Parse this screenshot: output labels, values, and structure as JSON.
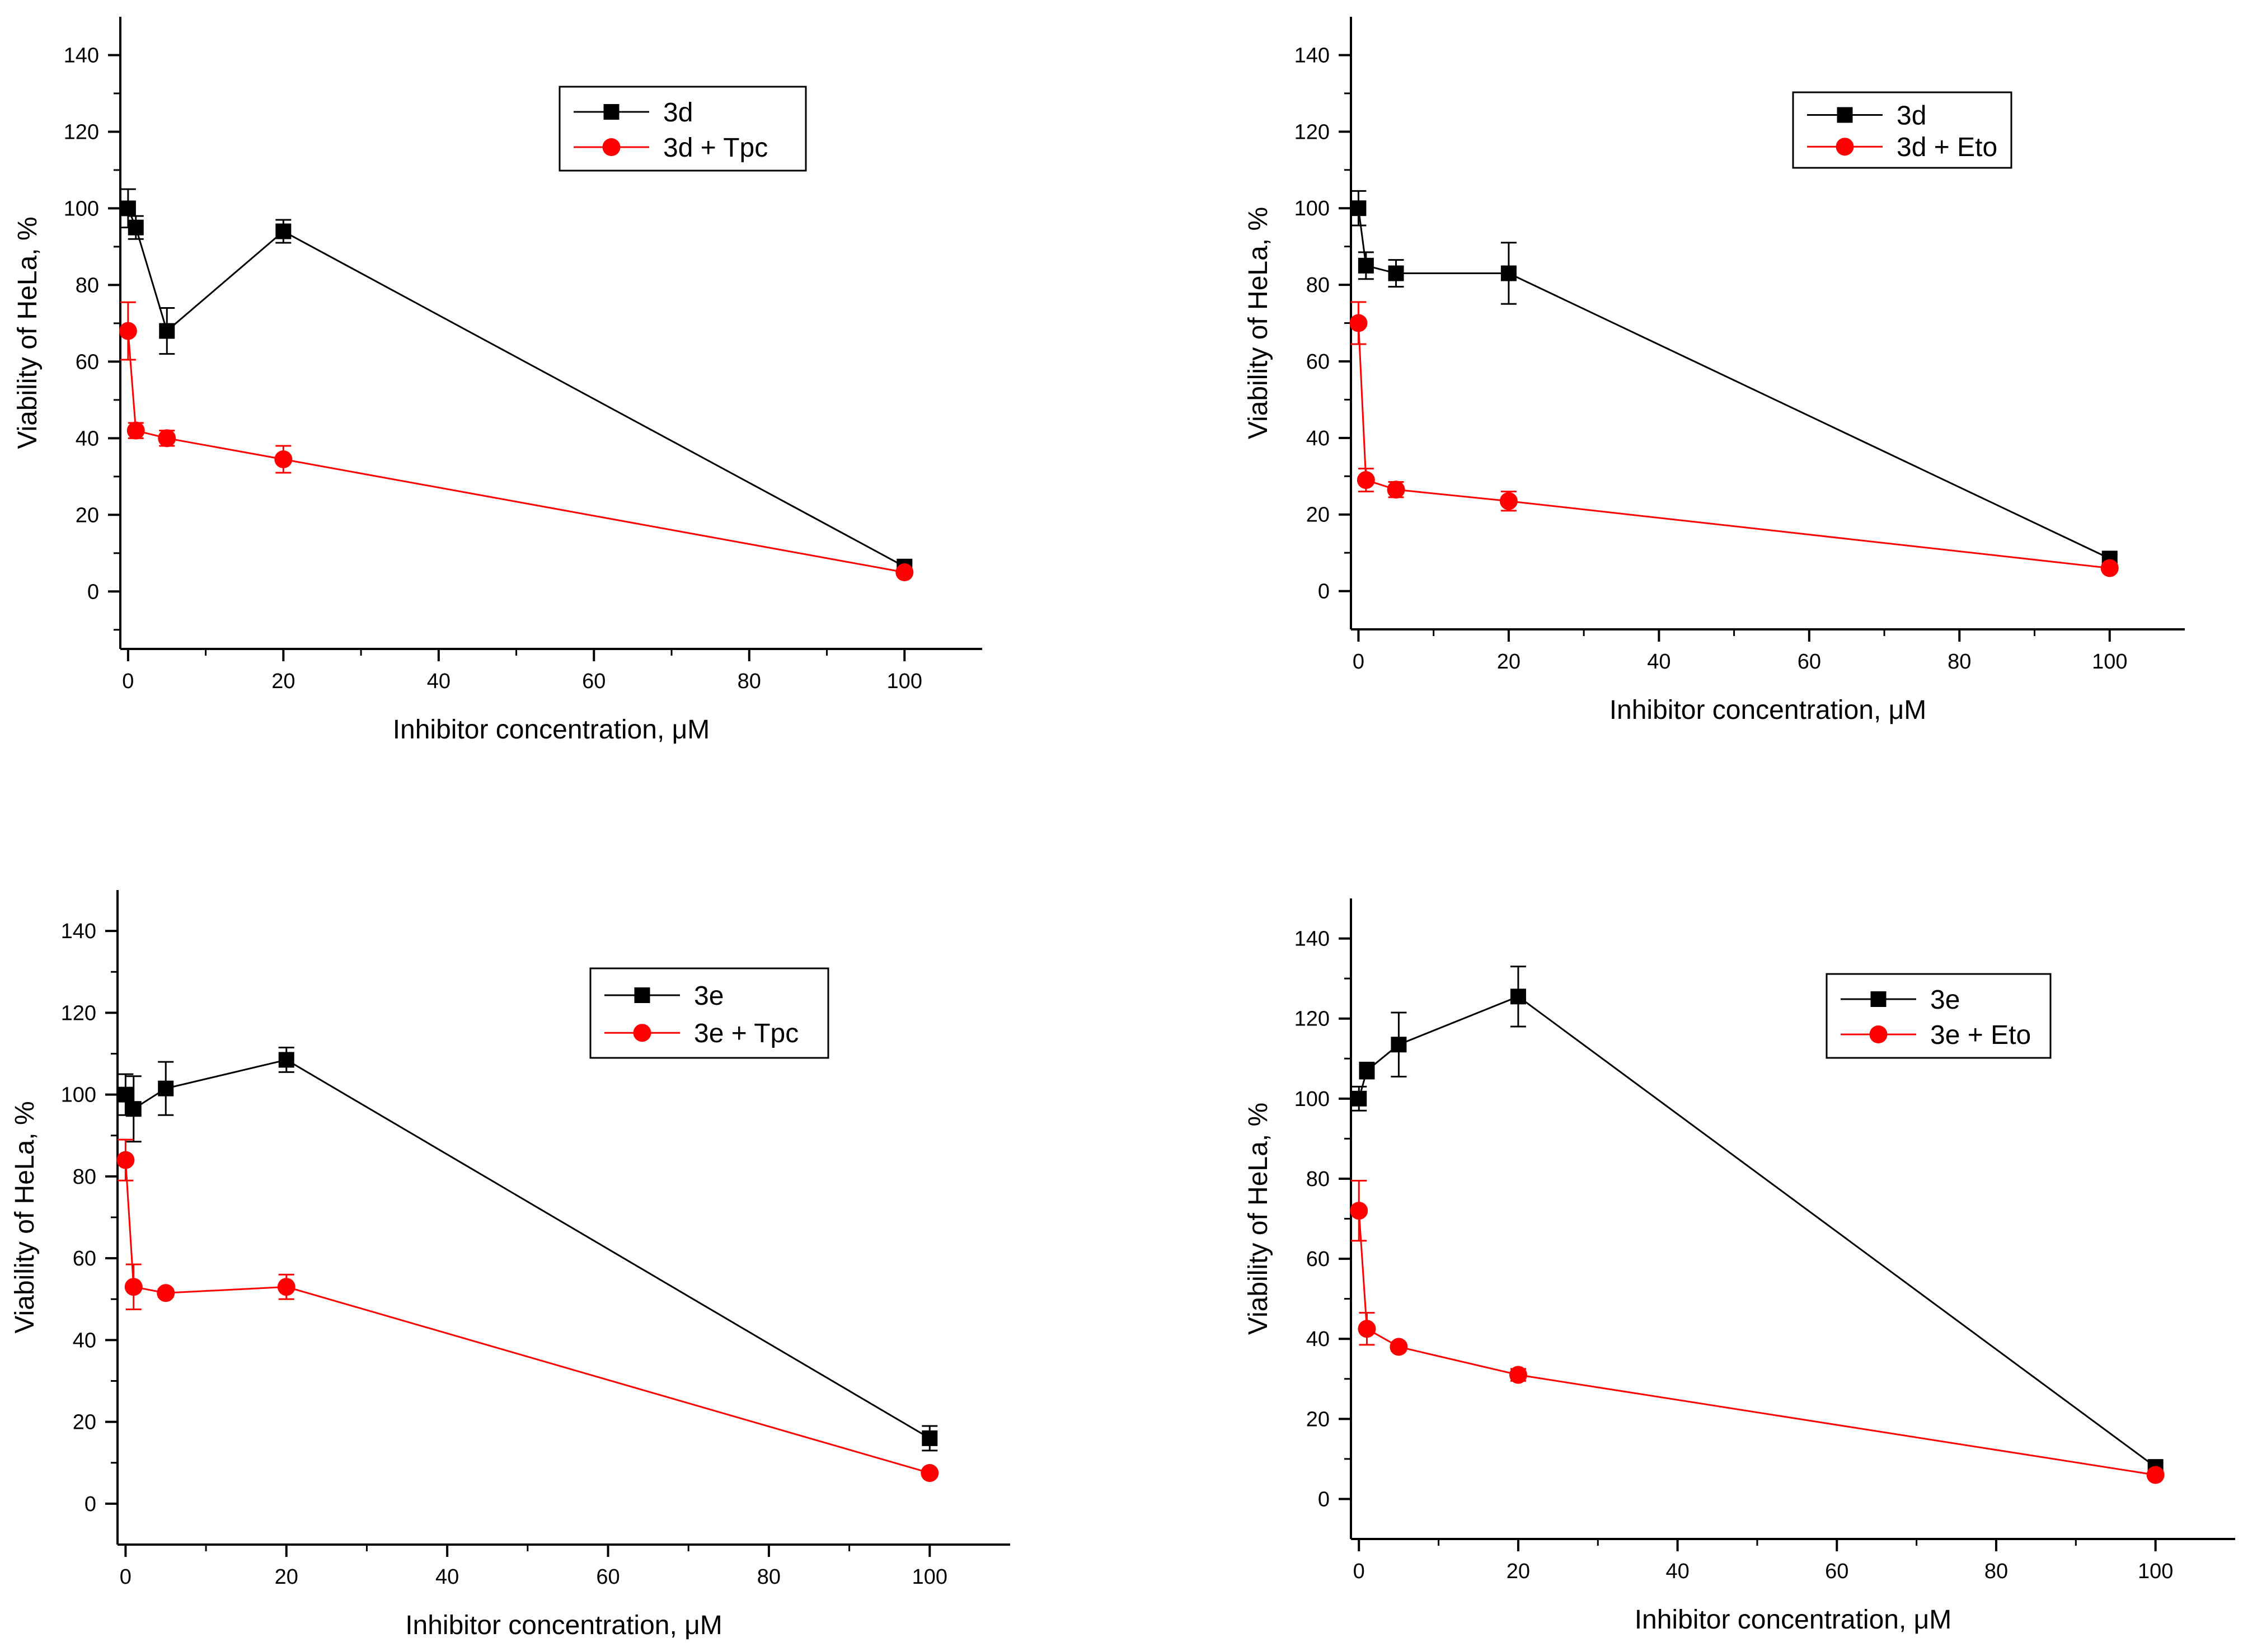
{
  "colors": {
    "series_a": "#000000",
    "series_b": "#ff0000",
    "axis": "#000000",
    "legend_bg": "#ffffff"
  },
  "chart_data": [
    {
      "type": "line",
      "title": "",
      "xlabel": "Inhibitor concentration, μM",
      "ylabel": "Viability of HeLa, %",
      "xlim": [
        -1,
        110
      ],
      "ylim": [
        -15,
        150
      ],
      "xticks": [
        0,
        20,
        40,
        60,
        80,
        100
      ],
      "yticks": [
        0,
        20,
        40,
        60,
        80,
        100,
        120,
        140
      ],
      "grid": false,
      "legend_position": "top-center",
      "series": [
        {
          "name": "3d",
          "marker": "square",
          "color": "#000000",
          "x": [
            0,
            1,
            5,
            20,
            100
          ],
          "y": [
            100,
            95,
            68,
            94,
            6.5
          ],
          "err": [
            5,
            3,
            6,
            3,
            1
          ]
        },
        {
          "name": "3d + Tpc",
          "marker": "circle",
          "color": "#ff0000",
          "x": [
            0,
            1,
            5,
            20,
            100
          ],
          "y": [
            68,
            42,
            40,
            34.5,
            5
          ],
          "err": [
            7.5,
            2,
            2,
            3.5,
            0.5
          ]
        }
      ]
    },
    {
      "type": "line",
      "title": "",
      "xlabel": "Inhibitor concentration, μM",
      "ylabel": "Viability of HeLa, %",
      "xlim": [
        -1,
        110
      ],
      "ylim": [
        -10,
        150
      ],
      "xticks": [
        0,
        20,
        40,
        60,
        80,
        100
      ],
      "yticks": [
        0,
        20,
        40,
        60,
        80,
        100,
        120,
        140
      ],
      "grid": false,
      "legend_position": "top-right",
      "series": [
        {
          "name": "3d",
          "marker": "square",
          "color": "#000000",
          "x": [
            0,
            1,
            5,
            20,
            100
          ],
          "y": [
            100,
            85,
            83,
            83,
            8.5
          ],
          "err": [
            4.5,
            3.5,
            3.5,
            8,
            1
          ]
        },
        {
          "name": "3d + Eto",
          "marker": "circle",
          "color": "#ff0000",
          "x": [
            0,
            1,
            5,
            20,
            100
          ],
          "y": [
            70,
            29,
            26.5,
            23.5,
            6
          ],
          "err": [
            5.5,
            3,
            2,
            2.5,
            0.5
          ]
        }
      ]
    },
    {
      "type": "line",
      "title": "",
      "xlabel": "Inhibitor concentration, μM",
      "ylabel": "Viability of HeLa, %",
      "xlim": [
        -1,
        110
      ],
      "ylim": [
        -10,
        150
      ],
      "xticks": [
        0,
        20,
        40,
        60,
        80,
        100
      ],
      "yticks": [
        0,
        20,
        40,
        60,
        80,
        100,
        120,
        140
      ],
      "grid": false,
      "legend_position": "top-center",
      "series": [
        {
          "name": "3e",
          "marker": "square",
          "color": "#000000",
          "x": [
            0,
            1,
            5,
            20,
            100
          ],
          "y": [
            100,
            96.5,
            101.5,
            108.5,
            16
          ],
          "err": [
            5,
            8,
            6.5,
            3,
            3
          ]
        },
        {
          "name": "3e + Tpc",
          "marker": "circle",
          "color": "#ff0000",
          "x": [
            0,
            1,
            5,
            20,
            100
          ],
          "y": [
            84,
            53,
            51.5,
            53,
            7.5
          ],
          "err": [
            5,
            5.5,
            1,
            3,
            0.5
          ]
        }
      ]
    },
    {
      "type": "line",
      "title": "",
      "xlabel": "Inhibitor concentration, μM",
      "ylabel": "Viability of HeLa, %",
      "xlim": [
        -1,
        110
      ],
      "ylim": [
        -10,
        150
      ],
      "xticks": [
        0,
        20,
        40,
        60,
        80,
        100
      ],
      "yticks": [
        0,
        20,
        40,
        60,
        80,
        100,
        120,
        140
      ],
      "grid": false,
      "legend_position": "top-right",
      "series": [
        {
          "name": "3e",
          "marker": "square",
          "color": "#000000",
          "x": [
            0,
            1,
            5,
            20,
            100
          ],
          "y": [
            100,
            107,
            113.5,
            125.5,
            8
          ],
          "err": [
            3,
            2,
            8,
            7.5,
            1
          ]
        },
        {
          "name": "3e + Eto",
          "marker": "circle",
          "color": "#ff0000",
          "x": [
            0,
            1,
            5,
            20,
            100
          ],
          "y": [
            72,
            42.5,
            38,
            31,
            6
          ],
          "err": [
            7.5,
            4,
            1,
            1.5,
            0.5
          ]
        }
      ]
    }
  ]
}
